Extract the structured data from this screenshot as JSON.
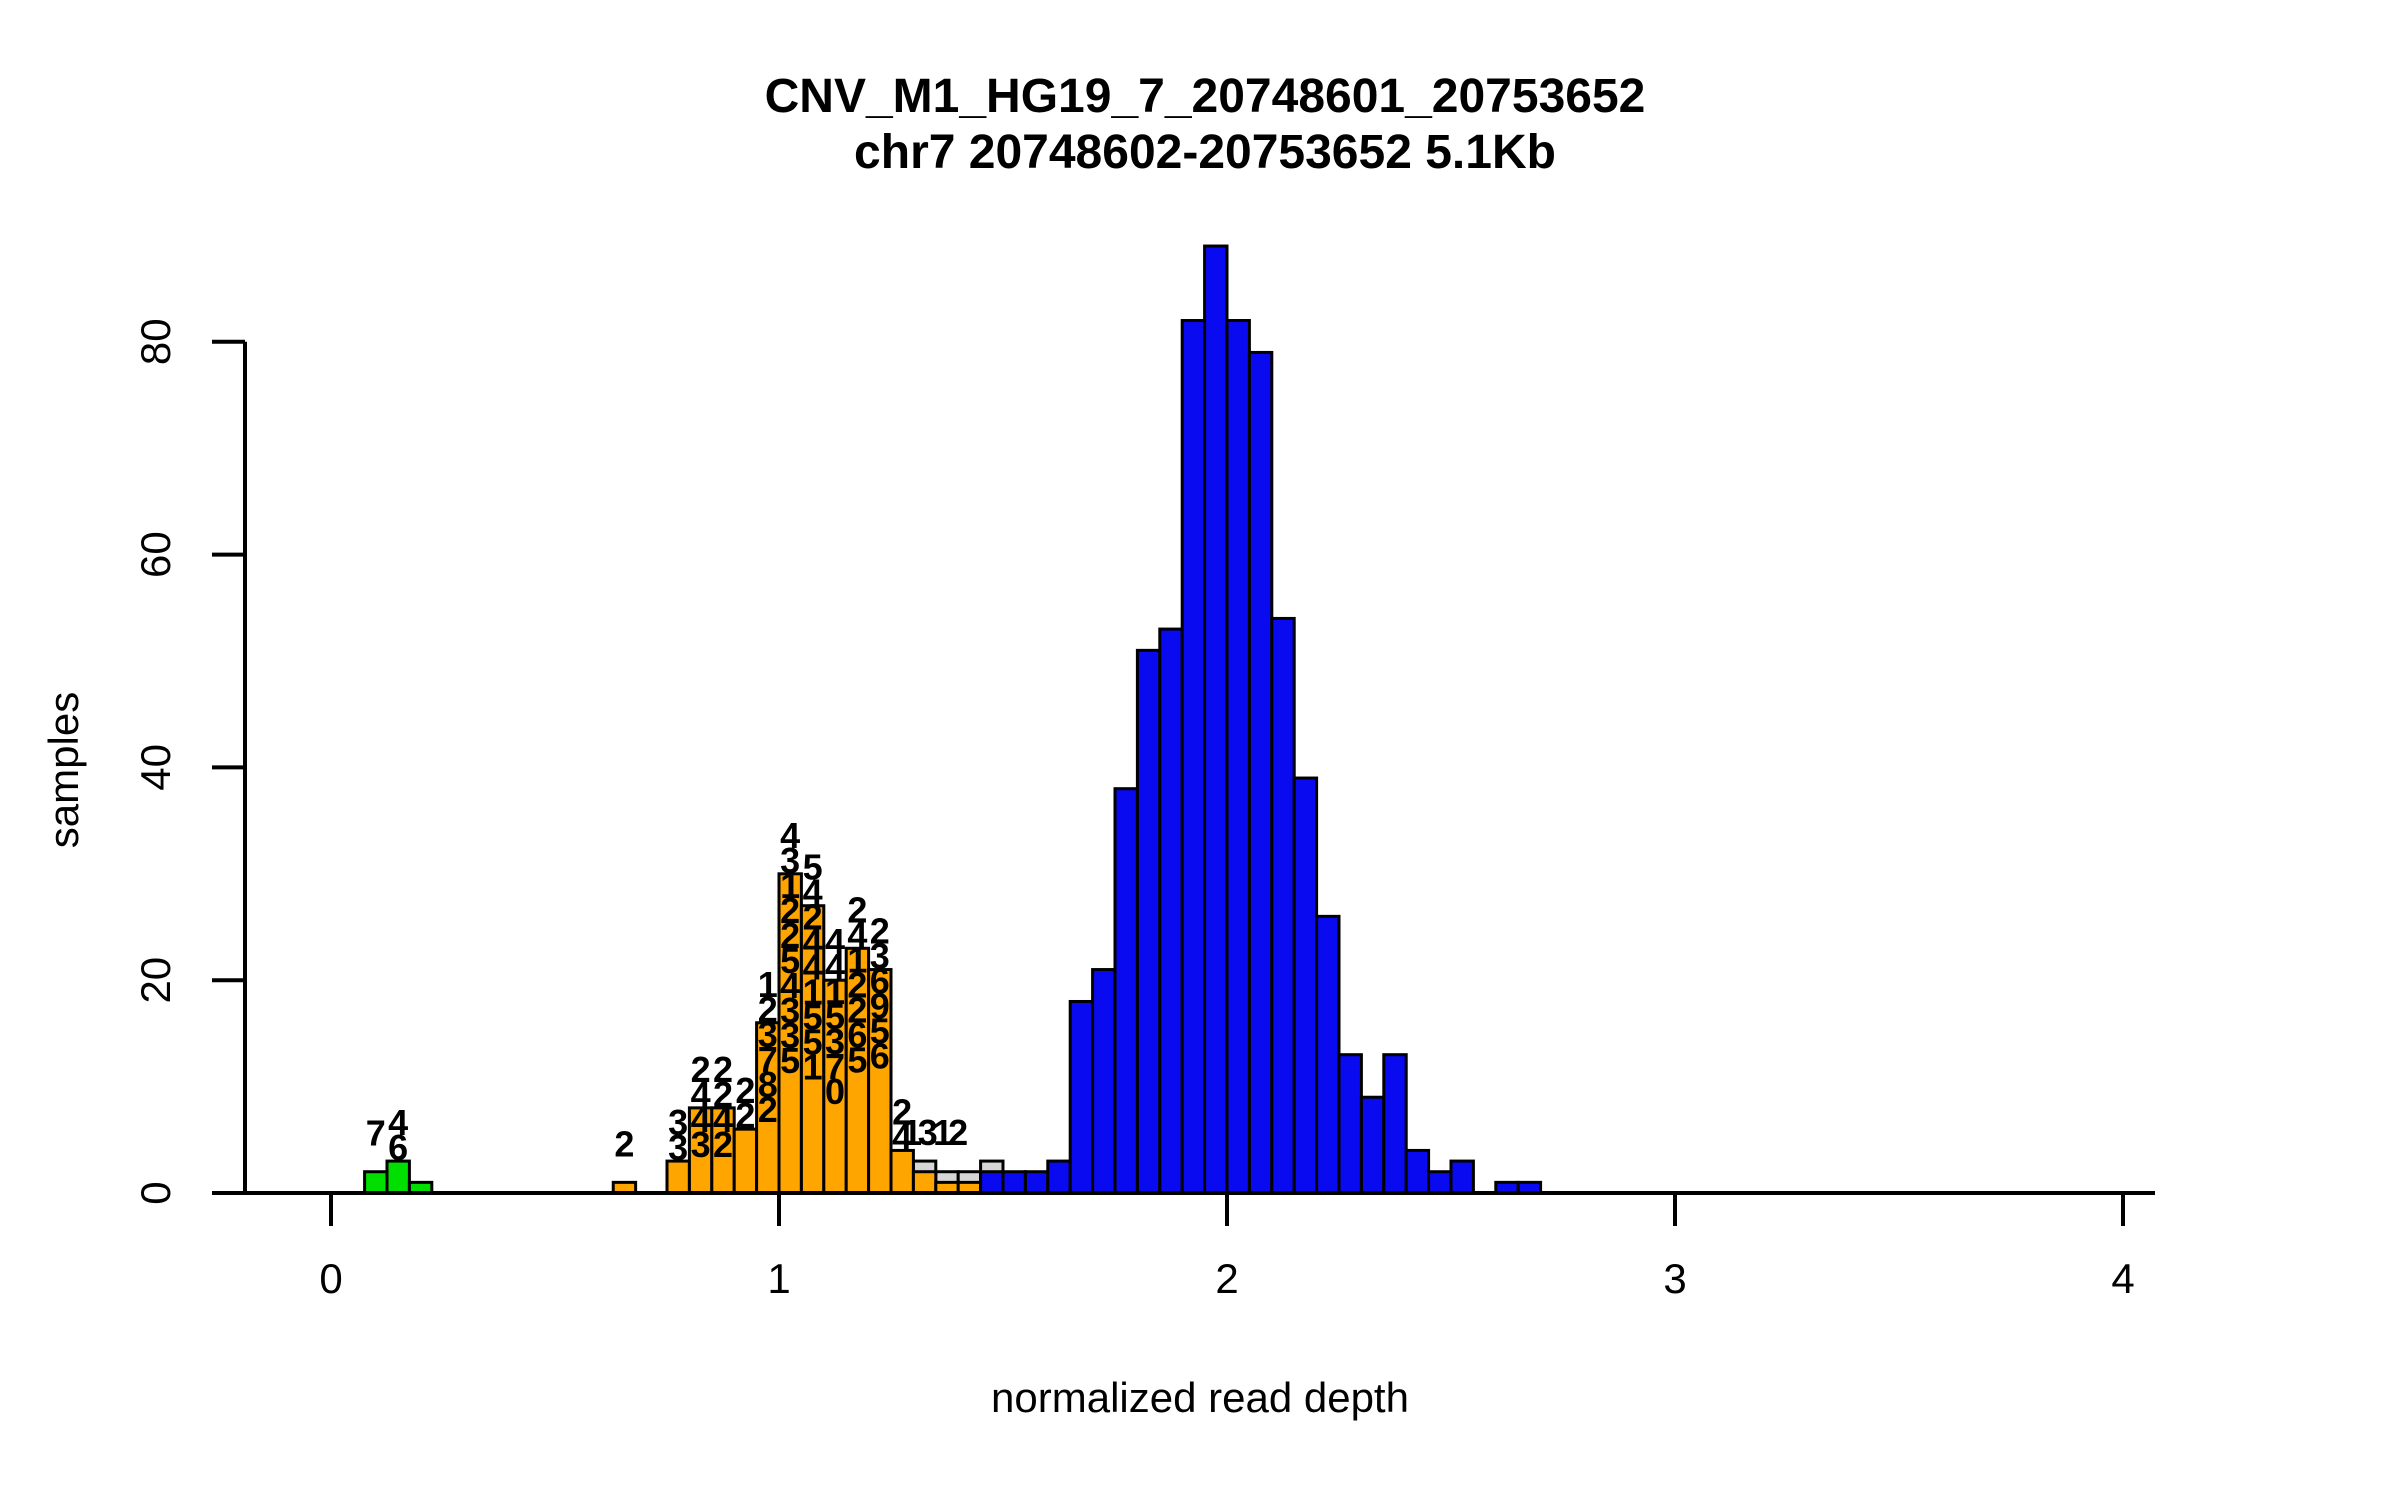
{
  "title": {
    "line1": "CNV_M1_HG19_7_20748601_20753652",
    "line2": "chr7 20748602-20753652 5.1Kb"
  },
  "axes": {
    "xlabel": "normalized read depth",
    "ylabel": "samples",
    "x_ticks": [
      "0",
      "1",
      "2",
      "3",
      "4"
    ],
    "x_tick_values": [
      0,
      1,
      2,
      3,
      4
    ],
    "y_ticks": [
      "0",
      "20",
      "40",
      "60",
      "80"
    ],
    "y_tick_values": [
      0,
      20,
      40,
      60,
      80
    ],
    "xlim": [
      -0.19,
      4.07
    ],
    "ylim": [
      0,
      89
    ],
    "grid": "off",
    "legend": "none"
  },
  "colors": {
    "green": "#00DF00",
    "orange": "#FFA500",
    "blue": "#0A0AF0",
    "gray": "#D6D6D6",
    "axis": "#000000",
    "bar_border": "#000000"
  },
  "chart_data": {
    "type": "bar",
    "note_type": "overlaid histograms, bin width 0.05",
    "bin_width": 0.05,
    "series": [
      {
        "name": "ambiguous-gray",
        "color_key": "gray",
        "bars": [
          {
            "x": 1.3,
            "h": 3,
            "labels": []
          },
          {
            "x": 1.35,
            "h": 2,
            "labels": []
          },
          {
            "x": 1.4,
            "h": 2,
            "labels": []
          },
          {
            "x": 1.45,
            "h": 3,
            "labels": []
          }
        ]
      },
      {
        "name": "deletion-green",
        "color_key": "green",
        "bars": [
          {
            "x": 0.075,
            "h": 2,
            "labels": [
              "7"
            ]
          },
          {
            "x": 0.125,
            "h": 3,
            "labels": [
              "4",
              "6"
            ]
          },
          {
            "x": 0.175,
            "h": 1,
            "labels": []
          }
        ]
      },
      {
        "name": "het-deletion-orange",
        "color_key": "orange",
        "bars": [
          {
            "x": 0.63,
            "h": 1,
            "labels": [
              "2"
            ]
          },
          {
            "x": 0.75,
            "h": 3,
            "labels": [
              "3",
              "3"
            ]
          },
          {
            "x": 0.8,
            "h": 8,
            "labels": [
              "2",
              "4",
              "4",
              "3"
            ]
          },
          {
            "x": 0.85,
            "h": 8,
            "labels": [
              "2",
              "2",
              "4",
              "2"
            ]
          },
          {
            "x": 0.9,
            "h": 6,
            "labels": [
              "2",
              "2"
            ]
          },
          {
            "x": 0.95,
            "h": 16,
            "labels": [
              "1",
              "2",
              "3",
              "7",
              "8",
              "2"
            ]
          },
          {
            "x": 1.0,
            "h": 30,
            "labels": [
              "4",
              "3",
              "1",
              "2",
              "2",
              "5",
              "4",
              "3",
              "3",
              "5"
            ]
          },
          {
            "x": 1.05,
            "h": 27,
            "labels": [
              "5",
              "4",
              "2",
              "4",
              "4",
              "1",
              "5",
              "5",
              "1"
            ]
          },
          {
            "x": 1.1,
            "h": 20,
            "labels": [
              "4",
              "4",
              "1",
              "5",
              "3",
              "7",
              "0"
            ]
          },
          {
            "x": 1.15,
            "h": 23,
            "labels": [
              "2",
              "4",
              "1",
              "2",
              "2",
              "6",
              "5"
            ]
          },
          {
            "x": 1.2,
            "h": 21,
            "labels": [
              "2",
              "3",
              "6",
              "9",
              "5",
              "6"
            ]
          },
          {
            "x": 1.25,
            "h": 4,
            "labels": [
              "2",
              "4"
            ]
          },
          {
            "x": 1.3,
            "h": 2,
            "labels": []
          },
          {
            "x": 1.35,
            "h": 1,
            "labels": []
          },
          {
            "x": 1.4,
            "h": 1,
            "labels": []
          }
        ]
      },
      {
        "name": "diploid-blue",
        "color_key": "blue",
        "bars": [
          {
            "x": 1.45,
            "h": 2,
            "labels": []
          },
          {
            "x": 1.5,
            "h": 2,
            "labels": []
          },
          {
            "x": 1.55,
            "h": 2,
            "labels": []
          },
          {
            "x": 1.6,
            "h": 3,
            "labels": []
          },
          {
            "x": 1.65,
            "h": 18,
            "labels": []
          },
          {
            "x": 1.7,
            "h": 21,
            "labels": []
          },
          {
            "x": 1.75,
            "h": 38,
            "labels": []
          },
          {
            "x": 1.8,
            "h": 51,
            "labels": []
          },
          {
            "x": 1.85,
            "h": 53,
            "labels": []
          },
          {
            "x": 1.9,
            "h": 82,
            "labels": []
          },
          {
            "x": 1.95,
            "h": 89,
            "labels": []
          },
          {
            "x": 2.0,
            "h": 82,
            "labels": []
          },
          {
            "x": 2.05,
            "h": 79,
            "labels": []
          },
          {
            "x": 2.1,
            "h": 54,
            "labels": []
          },
          {
            "x": 2.15,
            "h": 39,
            "labels": []
          },
          {
            "x": 2.2,
            "h": 26,
            "labels": []
          },
          {
            "x": 2.25,
            "h": 13,
            "labels": []
          },
          {
            "x": 2.3,
            "h": 9,
            "labels": []
          },
          {
            "x": 2.35,
            "h": 13,
            "labels": []
          },
          {
            "x": 2.4,
            "h": 4,
            "labels": []
          },
          {
            "x": 2.45,
            "h": 2,
            "labels": []
          },
          {
            "x": 2.5,
            "h": 3,
            "labels": []
          },
          {
            "x": 2.6,
            "h": 1,
            "labels": []
          },
          {
            "x": 2.65,
            "h": 1,
            "labels": []
          }
        ]
      }
    ],
    "floating_labels": [
      {
        "x": 1.297,
        "y": 4.5,
        "text": "1"
      },
      {
        "x": 1.332,
        "y": 4.5,
        "text": "3"
      },
      {
        "x": 1.366,
        "y": 4.5,
        "text": "1"
      },
      {
        "x": 1.4,
        "y": 4.5,
        "text": "2"
      }
    ]
  }
}
